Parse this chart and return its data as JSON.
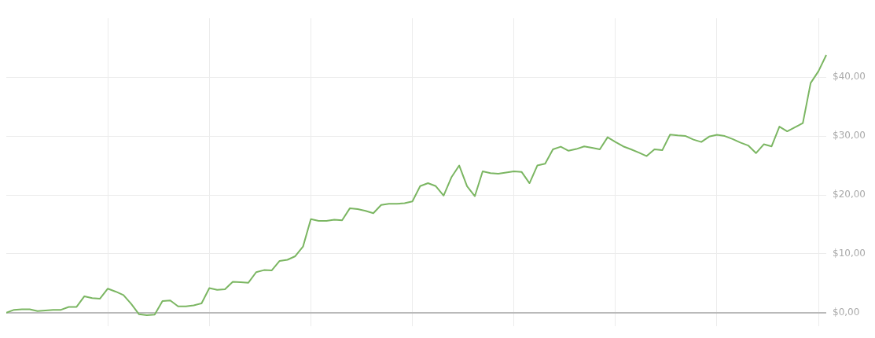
{
  "chart_data": {
    "type": "line",
    "categories": [
      null,
      null,
      null,
      null,
      null,
      null,
      null,
      null,
      null,
      null,
      null,
      null,
      null,
      null,
      null,
      null,
      null,
      null,
      null,
      null,
      null,
      null,
      null,
      null,
      null,
      null,
      null,
      null,
      null,
      null,
      null,
      null,
      null,
      null,
      null,
      null,
      null,
      null,
      null,
      null,
      null,
      null,
      null,
      null,
      null,
      null,
      null,
      null,
      null,
      null,
      null,
      null,
      null,
      null,
      null,
      null,
      null,
      null,
      null,
      null,
      null,
      null,
      null,
      null,
      null,
      null,
      null,
      null,
      null,
      null,
      null,
      null,
      null,
      null,
      null,
      null,
      null,
      null,
      null,
      null,
      null,
      null,
      null,
      null,
      null,
      null,
      null,
      null,
      null,
      null,
      null,
      null,
      null,
      null,
      null,
      null,
      null,
      null,
      null,
      null,
      null,
      null,
      null,
      null,
      null,
      null
    ],
    "series": [
      {
        "color": "#7bb662",
        "values": [
          0,
          0.5,
          0.6,
          0.6,
          0.3,
          0.4,
          0.5,
          0.5,
          1.0,
          1.0,
          2.8,
          2.5,
          2.4,
          4.1,
          3.6,
          3.0,
          1.5,
          -0.25,
          -0.4,
          -0.3,
          2.0,
          2.1,
          1.1,
          1.1,
          1.25,
          1.6,
          4.2,
          3.9,
          4.0,
          5.25,
          5.2,
          5.1,
          6.9,
          7.25,
          7.2,
          8.8,
          9.0,
          9.6,
          11.25,
          15.9,
          15.6,
          15.6,
          15.8,
          15.7,
          17.75,
          17.6,
          17.3,
          16.9,
          18.3,
          18.5,
          18.5,
          18.6,
          18.9,
          21.5,
          22.0,
          21.5,
          19.9,
          23.0,
          25.0,
          21.5,
          19.8,
          24.0,
          23.7,
          23.6,
          23.8,
          24.0,
          23.9,
          22.0,
          25.0,
          25.3,
          27.75,
          28.2,
          27.5,
          27.8,
          28.25,
          28.0,
          27.75,
          29.8,
          29.0,
          28.25,
          27.75,
          27.2,
          26.6,
          27.75,
          27.6,
          30.25,
          30.1,
          30.0,
          29.4,
          29.0,
          29.9,
          30.2,
          30.0,
          29.5,
          28.9,
          28.4,
          27.1,
          28.6,
          28.25,
          31.6,
          30.8,
          31.5,
          32.2,
          39.0,
          41.0,
          43.75
        ]
      }
    ],
    "ylim": [
      -2.25,
      50
    ],
    "yticks": [
      {
        "value": 0,
        "label": "$0,00"
      },
      {
        "value": 10,
        "label": "$10,00"
      },
      {
        "value": 20,
        "label": "$20,00"
      },
      {
        "value": 30,
        "label": "$30,00"
      },
      {
        "value": 40,
        "label": "$40,00"
      }
    ],
    "ref_lines": [
      {
        "axis": "y",
        "value": 0,
        "color": "#aaaaaa"
      }
    ],
    "grid": true,
    "tick_labels": "y",
    "legend": false,
    "marker": "none",
    "line_style": "solid"
  }
}
